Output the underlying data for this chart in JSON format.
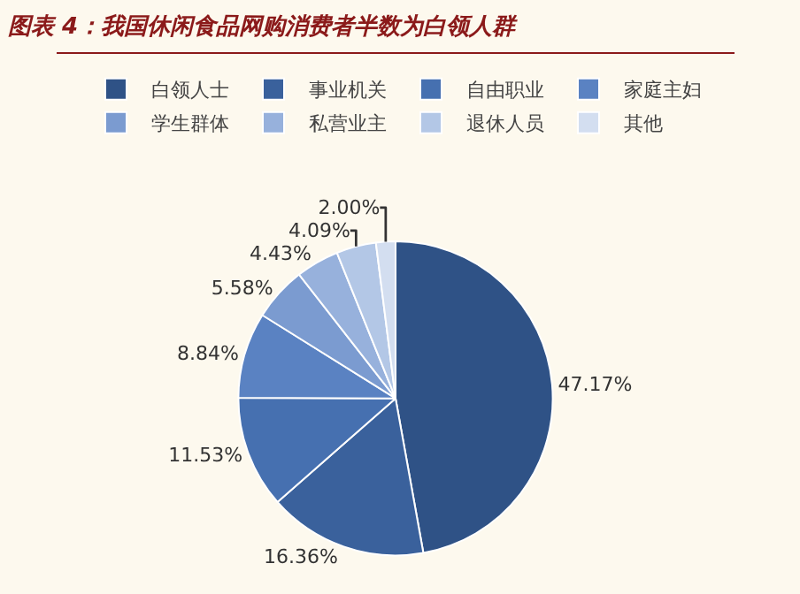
{
  "chart_data": {
    "type": "pie",
    "title": "图表 4：我国休闲食品网购消费者半数为白领人群",
    "categories": [
      "白领人士",
      "事业机关",
      "自由职业",
      "家庭主妇",
      "学生群体",
      "私营业主",
      "退休人员",
      "其他"
    ],
    "values": [
      47.17,
      16.36,
      11.53,
      8.84,
      5.58,
      4.43,
      4.09,
      2.0
    ],
    "colors": [
      "#2f5286",
      "#3a619c",
      "#4670b0",
      "#5a82c2",
      "#7b9bd0",
      "#97b1dc",
      "#b3c7e6",
      "#d3def0"
    ],
    "value_labels": [
      "47.17%",
      "16.36%",
      "11.53%",
      "8.84%",
      "5.58%",
      "4.43%",
      "4.09%",
      "2.00%"
    ],
    "legend": "top"
  }
}
